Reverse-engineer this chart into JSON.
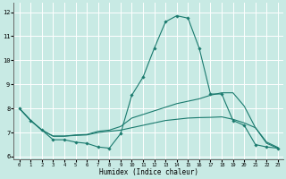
{
  "xlabel": "Humidex (Indice chaleur)",
  "xlim": [
    -0.5,
    23.5
  ],
  "ylim": [
    5.9,
    12.4
  ],
  "yticks": [
    6,
    7,
    8,
    9,
    10,
    11,
    12
  ],
  "xticks": [
    0,
    1,
    2,
    3,
    4,
    5,
    6,
    7,
    8,
    9,
    10,
    11,
    12,
    13,
    14,
    15,
    16,
    17,
    18,
    19,
    20,
    21,
    22,
    23
  ],
  "bg_color": "#c8eae4",
  "grid_color": "#ffffff",
  "line_color": "#1a7a6e",
  "lines": [
    {
      "x": [
        0,
        1,
        2,
        3,
        4,
        5,
        6,
        7,
        8,
        9,
        10,
        11,
        12,
        13,
        14,
        15,
        16,
        17,
        18,
        19,
        20,
        21,
        22,
        23
      ],
      "y": [
        8.0,
        7.5,
        7.1,
        6.7,
        6.7,
        6.6,
        6.55,
        6.4,
        6.35,
        6.95,
        8.55,
        9.3,
        10.5,
        11.6,
        11.85,
        11.75,
        10.5,
        8.6,
        8.6,
        7.5,
        7.3,
        6.5,
        6.4,
        6.35
      ],
      "marker": "D",
      "markersize": 1.8
    },
    {
      "x": [
        0,
        1,
        2,
        3,
        4,
        5,
        6,
        7,
        8,
        9,
        10,
        11,
        12,
        13,
        14,
        15,
        16,
        17,
        18,
        19,
        20,
        21,
        22,
        23
      ],
      "y": [
        8.0,
        7.5,
        7.1,
        6.85,
        6.85,
        6.9,
        6.92,
        7.05,
        7.1,
        7.25,
        7.6,
        7.75,
        7.9,
        8.05,
        8.2,
        8.3,
        8.4,
        8.55,
        8.65,
        8.65,
        8.1,
        7.2,
        6.55,
        6.35
      ],
      "marker": null,
      "markersize": 0
    },
    {
      "x": [
        0,
        1,
        2,
        3,
        4,
        5,
        6,
        7,
        8,
        9,
        10,
        11,
        12,
        13,
        14,
        15,
        16,
        17,
        18,
        19,
        20,
        21,
        22,
        23
      ],
      "y": [
        8.0,
        7.5,
        7.1,
        6.85,
        6.85,
        6.88,
        6.9,
        7.0,
        7.05,
        7.1,
        7.2,
        7.3,
        7.4,
        7.5,
        7.55,
        7.6,
        7.62,
        7.63,
        7.65,
        7.55,
        7.4,
        7.2,
        6.6,
        6.38
      ],
      "marker": null,
      "markersize": 0
    }
  ]
}
